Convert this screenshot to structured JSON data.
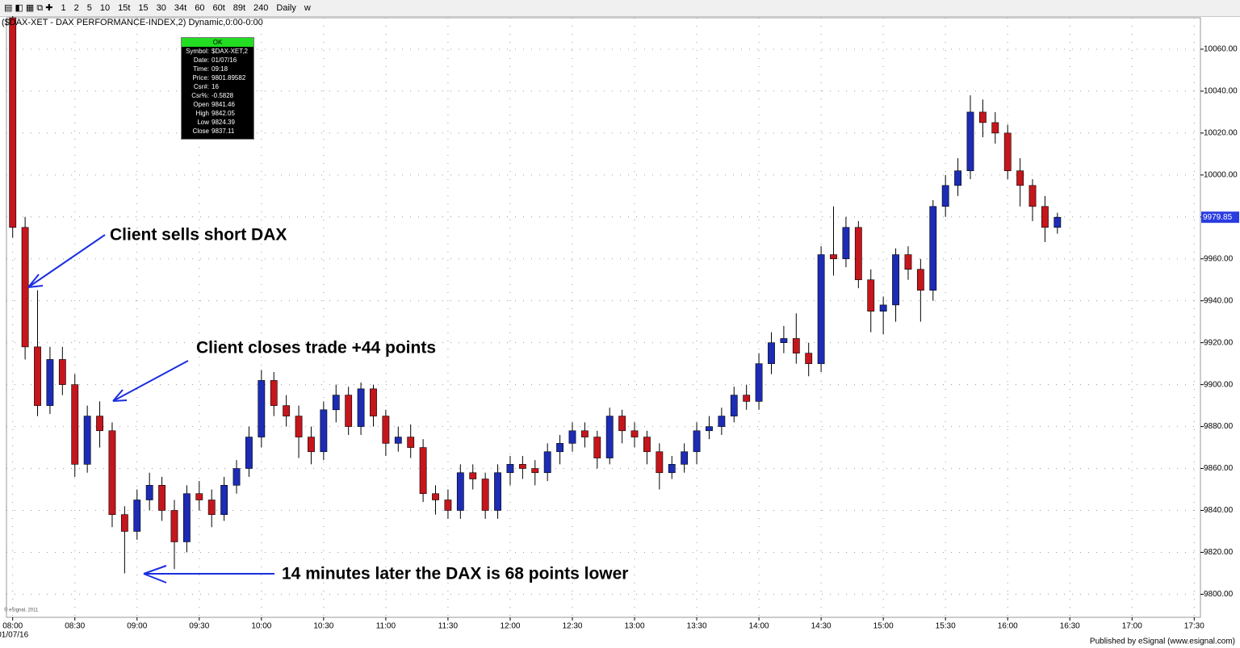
{
  "toolbar": {
    "items": [
      "1",
      "2",
      "5",
      "10",
      "15t",
      "15",
      "30",
      "34t",
      "60",
      "60t",
      "89t",
      "240",
      "Daily",
      "w"
    ]
  },
  "chart_data": {
    "type": "candlestick",
    "title": "($DAX-XET - DAX PERFORMANCE-INDEX,2) Dynamic,0:00-0:00",
    "x": [
      "08:00",
      "08:06",
      "08:12",
      "08:18",
      "08:24",
      "08:30",
      "08:36",
      "08:42",
      "08:48",
      "08:54",
      "09:00",
      "09:06",
      "09:12",
      "09:18",
      "09:24",
      "09:30",
      "09:36",
      "09:42",
      "09:48",
      "09:54",
      "10:00",
      "10:06",
      "10:12",
      "10:18",
      "10:24",
      "10:30",
      "10:36",
      "10:42",
      "10:48",
      "10:54",
      "11:00",
      "11:06",
      "11:12",
      "11:18",
      "11:24",
      "11:30",
      "11:36",
      "11:42",
      "11:48",
      "11:54",
      "12:00",
      "12:06",
      "12:12",
      "12:18",
      "12:24",
      "12:30",
      "12:36",
      "12:42",
      "12:48",
      "12:54",
      "13:00",
      "13:06",
      "13:12",
      "13:18",
      "13:24",
      "13:30",
      "13:36",
      "13:42",
      "13:48",
      "13:54",
      "14:00",
      "14:06",
      "14:12",
      "14:18",
      "14:24",
      "14:30",
      "14:36",
      "14:42",
      "14:48",
      "14:54",
      "15:00",
      "15:06",
      "15:12",
      "15:18",
      "15:24",
      "15:30",
      "15:36",
      "15:42",
      "15:48",
      "15:54",
      "16:00",
      "16:06",
      "16:12",
      "16:18",
      "16:24"
    ],
    "open": [
      10075,
      9975,
      9918,
      9890,
      9912,
      9900,
      9862,
      9885,
      9878,
      9838,
      9830,
      9845,
      9852,
      9840,
      9825,
      9848,
      9845,
      9838,
      9852,
      9860,
      9875,
      9902,
      9890,
      9885,
      9875,
      9868,
      9888,
      9895,
      9880,
      9898,
      9885,
      9872,
      9875,
      9870,
      9848,
      9845,
      9840,
      9858,
      9855,
      9840,
      9858,
      9862,
      9860,
      9858,
      9868,
      9872,
      9878,
      9875,
      9865,
      9885,
      9878,
      9875,
      9868,
      9858,
      9862,
      9868,
      9878,
      9880,
      9885,
      9895,
      9892,
      9910,
      9920,
      9922,
      9915,
      9910,
      9962,
      9960,
      9975,
      9950,
      9935,
      9938,
      9962,
      9955,
      9945,
      9985,
      9995,
      10002,
      10030,
      10025,
      10020,
      10002,
      9995,
      9985,
      9975
    ],
    "high": [
      10078,
      9980,
      9945,
      9918,
      9918,
      9905,
      9890,
      9892,
      9882,
      9842,
      9850,
      9858,
      9856,
      9845,
      9852,
      9854,
      9850,
      9856,
      9864,
      9880,
      9907,
      9906,
      9895,
      9890,
      9880,
      9892,
      9900,
      9899,
      9901,
      9900,
      9888,
      9880,
      9881,
      9874,
      9852,
      9850,
      9862,
      9862,
      9858,
      9862,
      9866,
      9866,
      9864,
      9872,
      9876,
      9882,
      9882,
      9878,
      9889,
      9888,
      9882,
      9878,
      9872,
      9866,
      9872,
      9882,
      9885,
      9889,
      9899,
      9900,
      9915,
      9925,
      9928,
      9934,
      9920,
      9966,
      9985,
      9980,
      9978,
      9955,
      9942,
      9965,
      9966,
      9960,
      9988,
      10000,
      10008,
      10038,
      10036,
      10030,
      10024,
      10008,
      9998,
      9990,
      9982
    ],
    "low": [
      9970,
      9912,
      9885,
      9886,
      9895,
      9856,
      9858,
      9870,
      9832,
      9810,
      9826,
      9840,
      9835,
      9812,
      9820,
      9840,
      9832,
      9835,
      9848,
      9856,
      9870,
      9885,
      9880,
      9865,
      9862,
      9864,
      9882,
      9876,
      9876,
      9880,
      9866,
      9868,
      9865,
      9844,
      9838,
      9836,
      9836,
      9850,
      9836,
      9836,
      9852,
      9855,
      9852,
      9854,
      9862,
      9868,
      9870,
      9860,
      9862,
      9872,
      9870,
      9862,
      9850,
      9855,
      9858,
      9862,
      9874,
      9876,
      9882,
      9888,
      9888,
      9905,
      9915,
      9910,
      9904,
      9906,
      9952,
      9956,
      9946,
      9925,
      9924,
      9930,
      9950,
      9930,
      9940,
      9980,
      9990,
      9998,
      10018,
      10015,
      9998,
      9985,
      9978,
      9968,
      9972
    ],
    "close": [
      9975,
      9918,
      9890,
      9912,
      9900,
      9862,
      9885,
      9878,
      9838,
      9830,
      9845,
      9852,
      9840,
      9825,
      9848,
      9845,
      9838,
      9852,
      9860,
      9875,
      9902,
      9890,
      9885,
      9875,
      9868,
      9888,
      9895,
      9880,
      9898,
      9885,
      9872,
      9875,
      9870,
      9848,
      9845,
      9840,
      9858,
      9855,
      9840,
      9858,
      9862,
      9860,
      9858,
      9868,
      9872,
      9878,
      9875,
      9865,
      9885,
      9878,
      9875,
      9868,
      9858,
      9862,
      9868,
      9878,
      9880,
      9885,
      9895,
      9892,
      9910,
      9920,
      9922,
      9915,
      9910,
      9962,
      9960,
      9975,
      9950,
      9935,
      9938,
      9962,
      9955,
      9945,
      9985,
      9995,
      10002,
      10030,
      10025,
      10020,
      10002,
      9995,
      9985,
      9975,
      9979.85
    ],
    "up_color": "#1c2cb4",
    "down_color": "#c4161c",
    "ylim": [
      9789,
      10075
    ],
    "yticks": [
      {
        "value": 9800,
        "label": "9800.00"
      },
      {
        "value": 9820,
        "label": "9820.00"
      },
      {
        "value": 9840,
        "label": "9840.00"
      },
      {
        "value": 9860,
        "label": "9860.00"
      },
      {
        "value": 9880,
        "label": "9880.00"
      },
      {
        "value": 9900,
        "label": "9900.00"
      },
      {
        "value": 9920,
        "label": "9920.00"
      },
      {
        "value": 9940,
        "label": "9940.00"
      },
      {
        "value": 9960,
        "label": "9960.00"
      },
      {
        "value": 9980,
        "label": "9980.00"
      },
      {
        "value": 10000,
        "label": "10000.00"
      },
      {
        "value": 10020,
        "label": "10020.00"
      },
      {
        "value": 10040,
        "label": "10040.00"
      },
      {
        "value": 10060,
        "label": "10060.00"
      }
    ],
    "xlim": [
      "07:57",
      "17:33"
    ],
    "xticks": [
      "08:00",
      "08:30",
      "09:00",
      "09:30",
      "10:00",
      "10:30",
      "11:00",
      "11:30",
      "12:00",
      "12:30",
      "13:00",
      "13:30",
      "14:00",
      "14:30",
      "15:00",
      "15:30",
      "16:00",
      "16:30",
      "17:00",
      "17:30"
    ],
    "date_label": "01/07/16",
    "grid": true,
    "annotations": [
      "Client sells short DAX",
      "Client closes trade +44 points",
      "14 minutes later the DAX is 68 points lower"
    ]
  },
  "info_box": {
    "status": "OK",
    "rows": [
      [
        "Symbol:",
        "$DAX-XET,2"
      ],
      [
        "Date:",
        "01/07/16"
      ],
      [
        "Time:",
        "09:18"
      ],
      [
        "Price:",
        "9801.89582"
      ],
      [
        "Csr#:",
        "16"
      ],
      [
        "Csr%:",
        "-0.5828"
      ],
      [
        "Open",
        "9841.46"
      ],
      [
        "High",
        "9842.05"
      ],
      [
        "Low",
        "9824.39"
      ],
      [
        "Close",
        "9837.11"
      ]
    ]
  },
  "footer": {
    "copyright": "© eSignal, 2011",
    "publisher": "Published by eSignal (www.esignal.com)"
  }
}
